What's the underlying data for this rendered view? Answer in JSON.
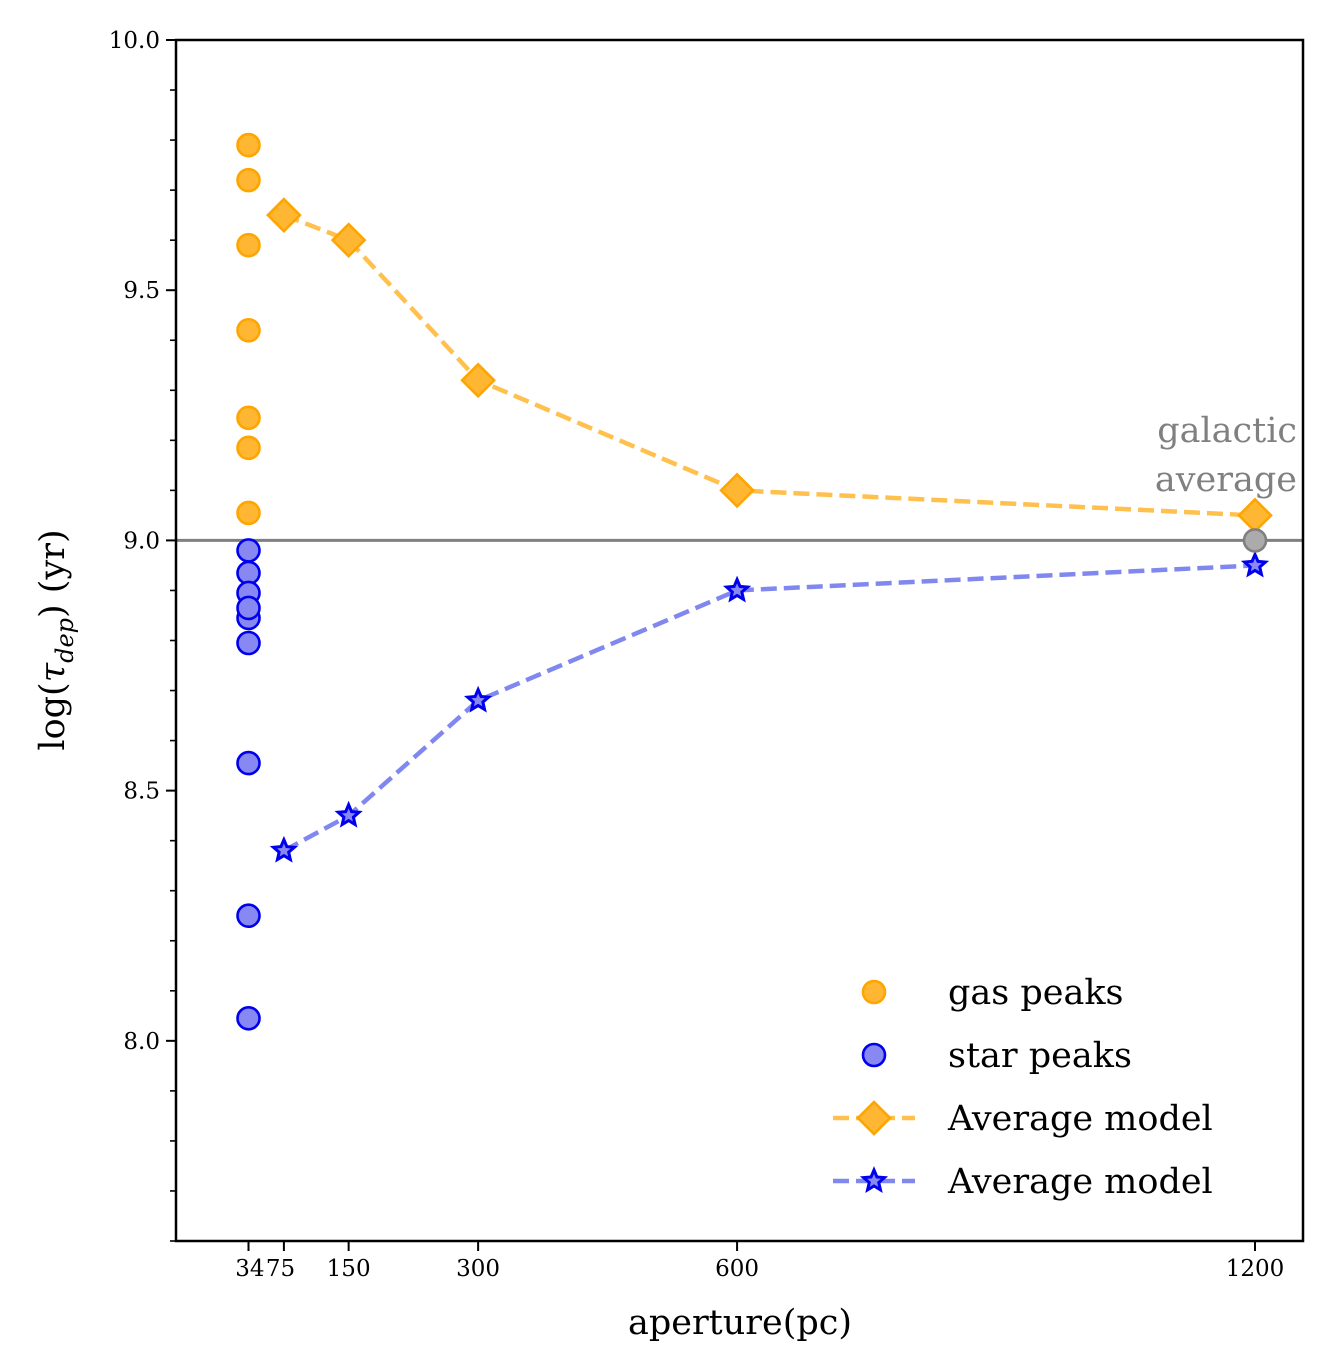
{
  "chart_data": {
    "type": "scatter",
    "title": "",
    "xlabel": "aperture(pc)",
    "ylabel_prefix": "log(",
    "ylabel_symbol": "τ",
    "ylabel_subscript": "dep",
    "ylabel_suffix": ") (yr)",
    "xlim": [
      0,
      1260
    ],
    "ylim": [
      7.6,
      10.0
    ],
    "x_ticks": [
      {
        "value": 34,
        "label": "34"
      },
      {
        "value": 75,
        "label": "75"
      },
      {
        "value": 150,
        "label": "150"
      },
      {
        "value": 300,
        "label": "300"
      },
      {
        "value": 600,
        "label": "600"
      },
      {
        "value": 1200,
        "label": "1200"
      }
    ],
    "y_ticks": [
      {
        "value": 8.0,
        "label": "8.0"
      },
      {
        "value": 8.5,
        "label": "8.5"
      },
      {
        "value": 9.0,
        "label": "9.0"
      },
      {
        "value": 9.5,
        "label": "9.5"
      },
      {
        "value": 10.0,
        "label": "10.0"
      }
    ],
    "y_minor_step": 0.1,
    "reference_line": {
      "y": 9.0,
      "color": "#808080"
    },
    "annotation": {
      "line1": "galactic",
      "line2": "average",
      "x": 1200,
      "y": 9.0
    },
    "series": [
      {
        "name": "gas peaks",
        "kind": "scatter",
        "marker": "circle",
        "fill": "#FFB733",
        "stroke": "#FFA500",
        "x": [
          34,
          34,
          34,
          34,
          34,
          34,
          34
        ],
        "y": [
          9.79,
          9.72,
          9.59,
          9.42,
          9.245,
          9.185,
          9.055
        ]
      },
      {
        "name": "star peaks",
        "kind": "scatter",
        "marker": "circle",
        "fill": "#8888F2",
        "stroke": "#0000EE",
        "x": [
          34,
          34,
          34,
          34,
          34,
          34,
          34,
          34,
          34
        ],
        "y": [
          8.98,
          8.935,
          8.895,
          8.845,
          8.865,
          8.795,
          8.555,
          8.25,
          8.045
        ]
      },
      {
        "name": "Average model",
        "kind": "line",
        "marker": "diamond",
        "fill": "#FFB733",
        "stroke": "#FFA500",
        "line_color": "#FFC04D",
        "x": [
          75,
          150,
          300,
          600,
          1200
        ],
        "y": [
          9.65,
          9.6,
          9.32,
          9.1,
          9.05
        ]
      },
      {
        "name": "Average model",
        "kind": "line",
        "marker": "star",
        "fill": "#8888F2",
        "stroke": "#0000EE",
        "line_color": "#8088F0",
        "x": [
          75,
          150,
          300,
          600,
          1200
        ],
        "y": [
          8.38,
          8.45,
          8.68,
          8.9,
          8.95
        ]
      },
      {
        "name": "galactic average",
        "kind": "scatter",
        "marker": "circle",
        "fill": "#ABABAB",
        "stroke": "#808080",
        "x": [
          1200
        ],
        "y": [
          9.0
        ]
      }
    ],
    "legend": {
      "position": "lower right",
      "entries": [
        {
          "label": "gas peaks",
          "series": 0
        },
        {
          "label": "star peaks",
          "series": 1
        },
        {
          "label": "Average model",
          "series": 2
        },
        {
          "label": "Average model",
          "series": 3
        }
      ]
    }
  }
}
